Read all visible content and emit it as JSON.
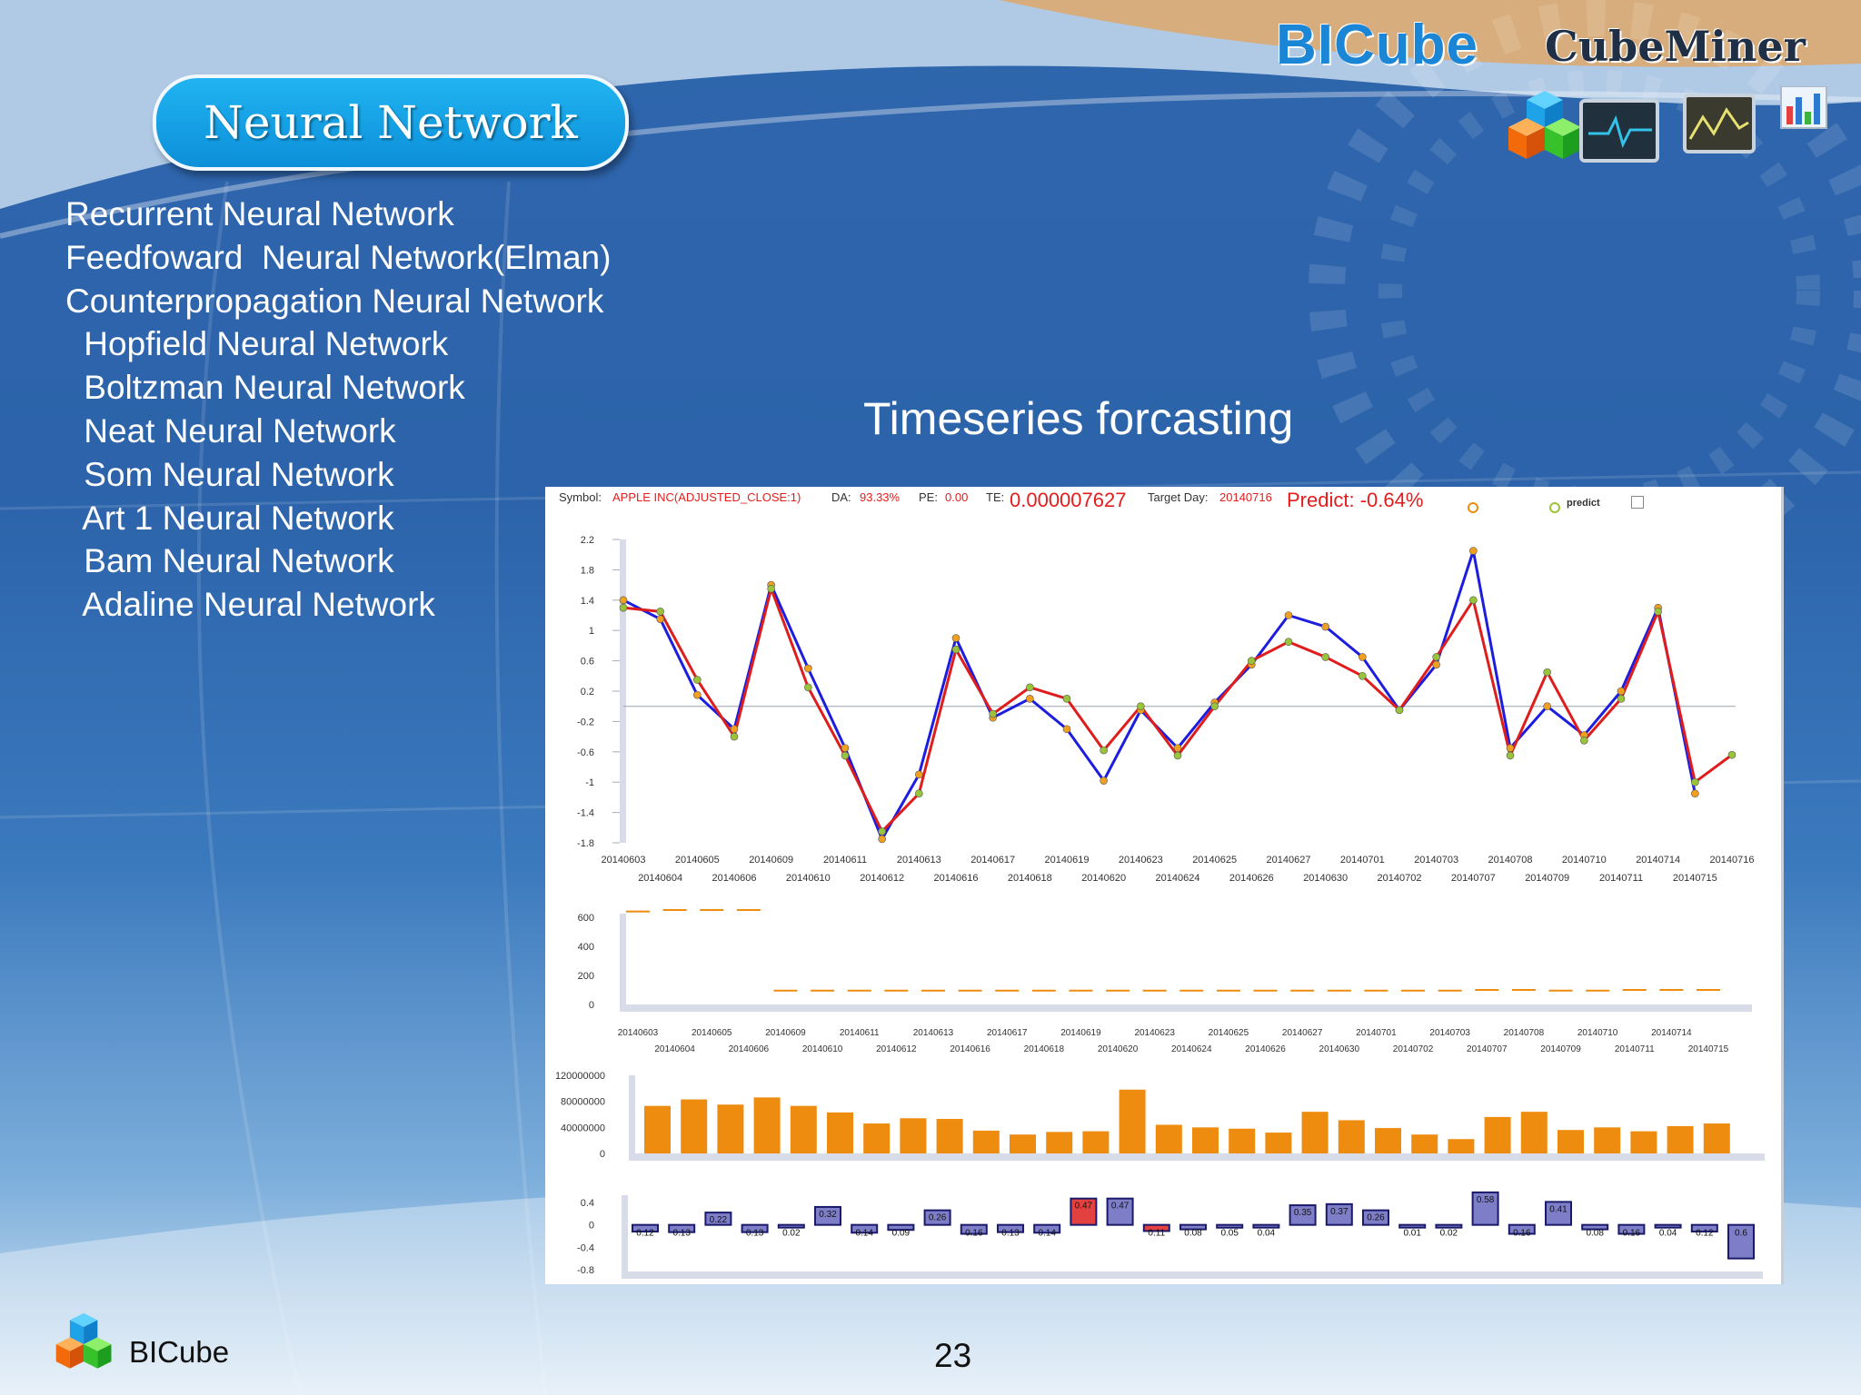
{
  "slide": {
    "title": "Neural Network",
    "brand": "BICube",
    "brand_sub": "CubeMiner",
    "section_title": "Timeseries forcasting",
    "page_number": "23",
    "footer_brand": "BICube"
  },
  "nn_list": [
    "Recurrent Neural Network",
    "Feedfoward  Neural Network(Elman)",
    "Counterpropagation Neural Network",
    " Hopfield Neural Network",
    " Boltzman Neural Network",
    " Neat Neural Network",
    " Som Neural Network",
    " Art 1 Neural Network",
    " Bam Neural Network",
    " Adaline Neural Network"
  ],
  "chart_header": {
    "symbol_label": "Symbol:",
    "symbol_value": "APPLE INC(ADJUSTED_CLOSE:1)",
    "da_label": "DA:",
    "da_value": "93.33%",
    "pe_label": "PE:",
    "pe_value": "0.00",
    "te_label": "TE:",
    "te_value": "0.000007627",
    "target_label": "Target Day:",
    "target_value": "20140716",
    "predict_value": "Predict: -0.64%",
    "legend_predict": "predict"
  },
  "colors": {
    "actual_line": "#1d1de0",
    "predict_line": "#e01d1d",
    "marker": "#9ac33c",
    "bar_orange": "#ee8c10",
    "box_navy": "#7e7ec8",
    "box_red": "#e34040"
  },
  "chart_data": [
    {
      "type": "line",
      "x": [
        "20140603",
        "20140604",
        "20140605",
        "20140606",
        "20140609",
        "20140610",
        "20140611",
        "20140612",
        "20140613",
        "20140616",
        "20140617",
        "20140618",
        "20140619",
        "20140620",
        "20140623",
        "20140624",
        "20140625",
        "20140626",
        "20140627",
        "20140630",
        "20140701",
        "20140702",
        "20140703",
        "20140707",
        "20140708",
        "20140709",
        "20140710",
        "20140711",
        "20140714",
        "20140715",
        "20140716"
      ],
      "series": [
        {
          "values": [
            1.4,
            1.15,
            0.15,
            -0.3,
            1.6,
            0.5,
            -0.55,
            -1.75,
            -0.9,
            0.9,
            -0.15,
            0.1,
            -0.3,
            -0.98,
            -0.05,
            -0.55,
            0.05,
            0.55,
            1.2,
            1.05,
            0.65,
            -0.05,
            0.55,
            2.05,
            -0.55,
            0.0,
            -0.38,
            0.2,
            1.3,
            -1.15,
            null
          ]
        },
        {
          "values": [
            1.3,
            1.25,
            0.35,
            -0.4,
            1.55,
            0.25,
            -0.65,
            -1.65,
            -1.15,
            0.75,
            -0.1,
            0.25,
            0.1,
            -0.58,
            0.0,
            -0.65,
            0.0,
            0.6,
            0.85,
            0.65,
            0.4,
            -0.05,
            0.65,
            1.4,
            -0.65,
            0.45,
            -0.45,
            0.1,
            1.25,
            -1.0,
            -0.64
          ]
        }
      ],
      "ylim": [
        -1.8,
        2.2
      ],
      "yticks": [
        2.2,
        1.8,
        1.4,
        1,
        0.6,
        0.2,
        -0.2,
        -0.6,
        -1,
        -1.4,
        -1.8
      ]
    },
    {
      "type": "line",
      "x": [
        "20140603",
        "20140604",
        "20140605",
        "20140606",
        "20140609",
        "20140610",
        "20140611",
        "20140612",
        "20140613",
        "20140616",
        "20140617",
        "20140618",
        "20140619",
        "20140620",
        "20140623",
        "20140624",
        "20140625",
        "20140626",
        "20140627",
        "20140630",
        "20140701",
        "20140702",
        "20140703",
        "20140707",
        "20140708",
        "20140709",
        "20140710",
        "20140711",
        "20140714",
        "20140715"
      ],
      "values": [
        640,
        650,
        650,
        650,
        95,
        95,
        95,
        95,
        95,
        95,
        95,
        95,
        95,
        95,
        95,
        95,
        95,
        95,
        95,
        95,
        95,
        95,
        95,
        100,
        100,
        95,
        95,
        100,
        100,
        100
      ],
      "ylim": [
        0,
        600
      ],
      "yticks": [
        600,
        400,
        200,
        0
      ]
    },
    {
      "type": "bar",
      "values": [
        73000000,
        83000000,
        75000000,
        86000000,
        73000000,
        63000000,
        46000000,
        54000000,
        53000000,
        35000000,
        29000000,
        33000000,
        34000000,
        98000000,
        44000000,
        40000000,
        38000000,
        32000000,
        64000000,
        51000000,
        39000000,
        29000000,
        22000000,
        56000000,
        64000000,
        36000000,
        40000000,
        34000000,
        42000000,
        46000000
      ],
      "ylim": [
        0,
        120000000
      ],
      "yticks": [
        "120000000",
        "80000000",
        "40000000",
        "0"
      ]
    },
    {
      "type": "bar",
      "values": [
        -0.12,
        -0.13,
        0.22,
        -0.13,
        -0.02,
        0.32,
        -0.14,
        -0.09,
        0.26,
        -0.16,
        -0.13,
        -0.14,
        0.47,
        0.47,
        -0.11,
        -0.08,
        -0.05,
        -0.04,
        0.35,
        0.37,
        0.26,
        -0.01,
        -0.02,
        0.58,
        -0.16,
        0.41,
        -0.08,
        -0.16,
        -0.04,
        -0.12,
        -0.6
      ],
      "labels": [
        "0.12",
        "0.13",
        "0.22",
        "0.13",
        "0.02",
        "0.32",
        "0.14",
        "0.09",
        "0.26",
        "0.16",
        "0.13",
        "0.14",
        "0.47",
        "0.47",
        "0.11",
        "0.08",
        "0.05",
        "0.04",
        "0.35",
        "0.37",
        "0.26",
        "0.01",
        "0.02",
        "0.58",
        "0.16",
        "0.41",
        "0.08",
        "0.16",
        "0.04",
        "0.12",
        "0.6"
      ],
      "highlight": [
        12,
        14
      ],
      "ylim": [
        -0.8,
        0.4
      ],
      "yticks": [
        0.4,
        0,
        -0.4,
        -0.8
      ]
    }
  ]
}
